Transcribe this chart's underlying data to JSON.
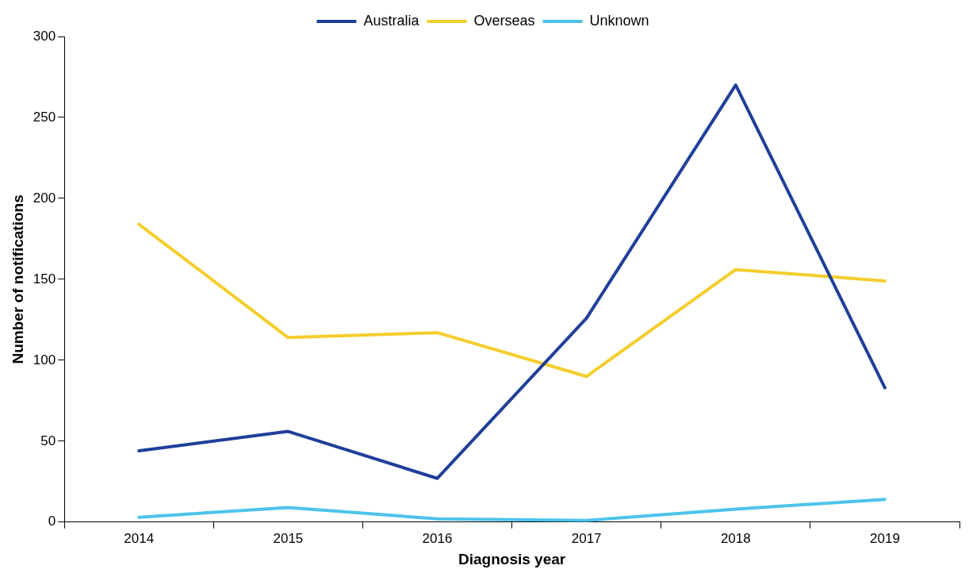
{
  "chart_data": {
    "type": "line",
    "xlabel": "Diagnosis year",
    "ylabel": "Number of notifications",
    "categories": [
      "2014",
      "2015",
      "2016",
      "2017",
      "2018",
      "2019"
    ],
    "series": [
      {
        "name": "Australia",
        "color": "#1f3f99",
        "values": [
          44,
          56,
          27,
          126,
          270,
          83
        ]
      },
      {
        "name": "Overseas",
        "color": "#f5cd2c",
        "values": [
          184,
          114,
          117,
          90,
          156,
          149
        ]
      },
      {
        "name": "Unknown",
        "color": "#4cc3ec",
        "values": [
          3,
          9,
          2,
          1,
          8,
          14
        ]
      }
    ],
    "ylim": [
      0,
      300
    ],
    "yticks": [
      0,
      50,
      100,
      150,
      200,
      250,
      300
    ],
    "grid": false,
    "legend": "top",
    "marker": "none",
    "line_style": "solid"
  }
}
